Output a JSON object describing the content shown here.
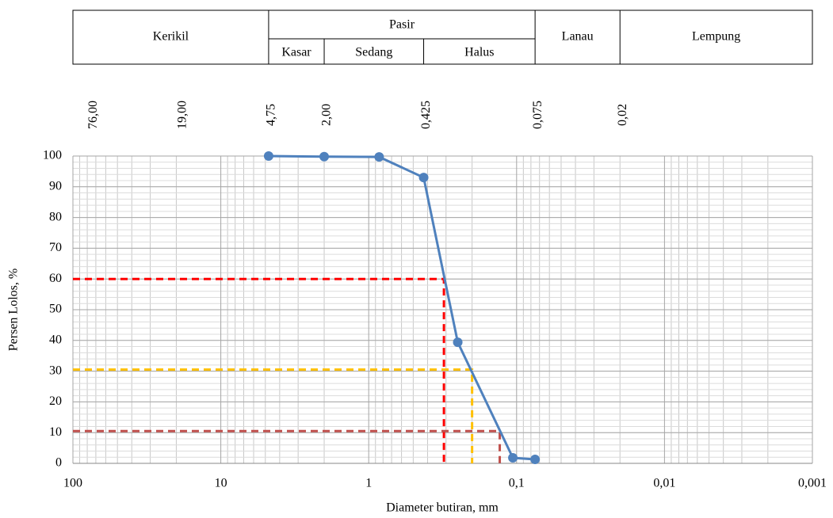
{
  "chart_data": {
    "type": "line",
    "x_label": "Diameter butiran, mm",
    "y_label": "Persen Lolos, %",
    "x_log": true,
    "x_reversed": true,
    "grid": true,
    "xlim": [
      100,
      0.001
    ],
    "xticks": [
      100,
      10,
      1,
      {
        "value": 0.1,
        "label": "0,1"
      },
      {
        "value": 0.01,
        "label": "0,01"
      },
      {
        "value": 0.001,
        "label": "0,001"
      }
    ],
    "ylim": [
      0,
      100
    ],
    "yticks": [
      0,
      10,
      20,
      30,
      40,
      50,
      60,
      70,
      80,
      90,
      100
    ],
    "sieves": [
      {
        "value": 76,
        "label": "76,00"
      },
      {
        "value": 19,
        "label": "19,00"
      },
      {
        "value": 4.75,
        "label": "4,75"
      },
      {
        "value": 2,
        "label": "2,00"
      },
      {
        "value": 0.425,
        "label": "0,425"
      },
      {
        "value": 0.075,
        "label": "0,075"
      },
      {
        "value": 0.02,
        "label": "0,02"
      }
    ],
    "soil_classes": {
      "gravel": "Kerikil",
      "sand": "Pasir",
      "coarse": "Kasar",
      "medium": "Sedang",
      "fine": "Halus",
      "silt": "Lanau",
      "clay": "Lempung"
    },
    "series": [
      {
        "color": "#4f81bd",
        "x": [
          4.75,
          2,
          0.85,
          0.425,
          0.25,
          0.106,
          0.075
        ],
        "values": [
          100,
          99.8,
          99.7,
          93,
          39.4,
          1.8,
          1.3
        ]
      }
    ],
    "reference_lines": [
      {
        "value": 60,
        "x": 0.31,
        "color": "#ff0000"
      },
      {
        "value": 30.5,
        "x": 0.2,
        "color": "#ffc000"
      },
      {
        "value": 10.5,
        "x": 0.13,
        "color": "#c0504d"
      }
    ]
  }
}
